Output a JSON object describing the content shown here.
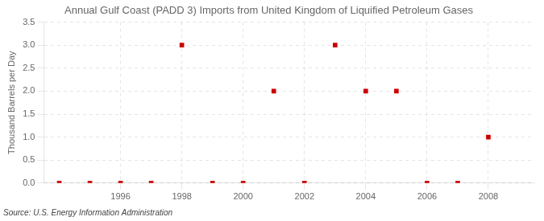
{
  "chart_data": {
    "type": "scatter",
    "title": "Annual Gulf Coast (PADD 3) Imports from United Kingdom of Liquified Petroleum Gases",
    "ylabel": "Thousand Barrels per Day",
    "source": "Source: U.S. Energy Information Administration",
    "x": [
      1994,
      1995,
      1996,
      1997,
      1998,
      1999,
      2000,
      2001,
      2002,
      2003,
      2004,
      2005,
      2006,
      2007,
      2008
    ],
    "values": [
      0.0,
      0.0,
      0.0,
      0.0,
      3.0,
      0.0,
      0.0,
      2.0,
      0.0,
      3.0,
      2.0,
      2.0,
      0.0,
      0.0,
      1.0
    ],
    "color": "#cc0000",
    "marker": "square",
    "xlim": [
      1993.5,
      2009.5
    ],
    "xticks": [
      1996,
      1998,
      2000,
      2002,
      2004,
      2006,
      2008
    ],
    "ylim": [
      0.0,
      3.5
    ],
    "yticks": [
      {
        "value": 0.0,
        "label": "0.0"
      },
      0.5,
      {
        "value": 1.0,
        "label": "1.0"
      },
      1.5,
      {
        "value": 2.0,
        "label": "2.0"
      },
      2.5,
      {
        "value": 3.0,
        "label": "3.0"
      },
      3.5
    ],
    "grid": true
  }
}
